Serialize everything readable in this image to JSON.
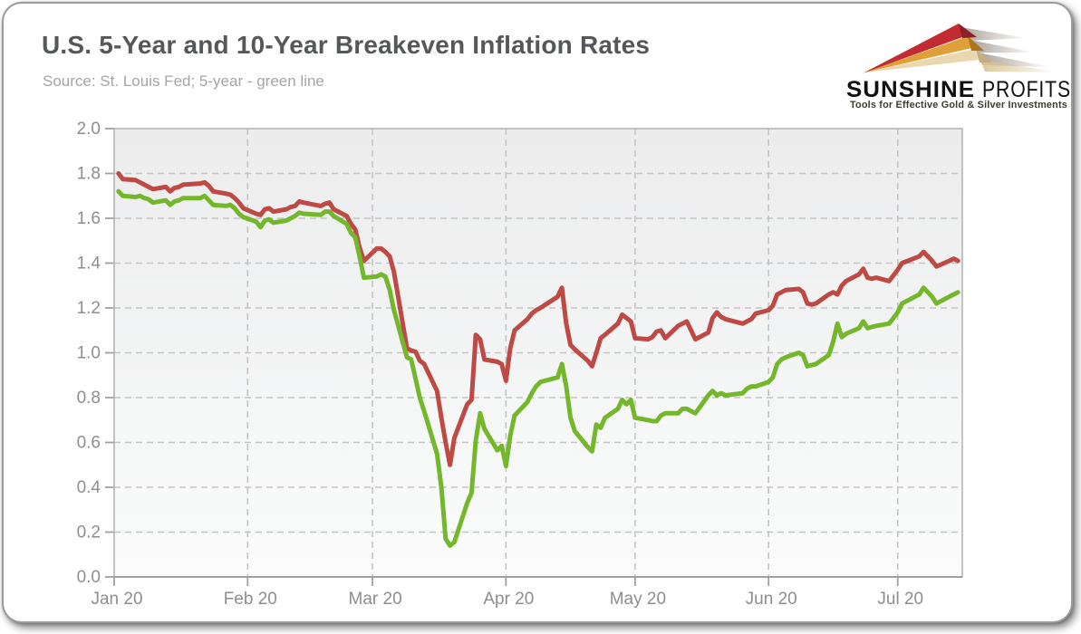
{
  "page": {
    "title": "U.S. 5-Year and 10-Year Breakeven Inflation Rates",
    "source_note": "Source: St. Louis Fed; 5-year - green line"
  },
  "logo": {
    "brand_bold": "SUNSHINE",
    "brand_regular": "PROFITS",
    "tagline": "Tools for Effective Gold & Silver Investments",
    "colors": {
      "ray_red": "#c22b31",
      "ray_red_tip": "#8e1f24",
      "ray_gold": "#dfa038",
      "ray_gold_tip": "#ad741c",
      "ray_cream": "#e9d7b0",
      "ray_cream_tip": "#c6ac80",
      "brand_text": "#111111",
      "tagline_text": "#3e3c2f"
    }
  },
  "chart_data": {
    "type": "line",
    "title": "U.S. 5-Year and 10-Year Breakeven Inflation Rates",
    "subtitle": "Source: St. Louis Fed; 5-year - green line",
    "grid": true,
    "legend": false,
    "plot_colors": {
      "background_top": "#ececed",
      "background_bottom": "#fbfbfb",
      "gridline": "#c4c4c4",
      "border": "#b5b5b5",
      "axis": "#a0a0a0",
      "tick_label": "#8e8e8e"
    },
    "x_axis": {
      "start": "2020-01-01",
      "end": "2020-07-16",
      "ticks": [
        {
          "label": "Jan 20",
          "date": "2020-01-01"
        },
        {
          "label": "Feb 20",
          "date": "2020-02-01"
        },
        {
          "label": "Mar 20",
          "date": "2020-03-01"
        },
        {
          "label": "Apr 20",
          "date": "2020-04-01"
        },
        {
          "label": "May 20",
          "date": "2020-05-01"
        },
        {
          "label": "Jun 20",
          "date": "2020-06-01"
        },
        {
          "label": "Jul 20",
          "date": "2020-07-01"
        }
      ]
    },
    "y_axis": {
      "min": 0.0,
      "max": 2.0,
      "step": 0.2,
      "labels": [
        "2.0",
        "1.8",
        "1.6",
        "1.4",
        "1.2",
        "1.0",
        "0.8",
        "0.6",
        "0.4",
        "0.2",
        "0.0"
      ]
    },
    "dates": [
      "2020-01-02",
      "2020-01-03",
      "2020-01-06",
      "2020-01-07",
      "2020-01-08",
      "2020-01-09",
      "2020-01-10",
      "2020-01-13",
      "2020-01-14",
      "2020-01-15",
      "2020-01-16",
      "2020-01-17",
      "2020-01-21",
      "2020-01-22",
      "2020-01-23",
      "2020-01-24",
      "2020-01-27",
      "2020-01-28",
      "2020-01-29",
      "2020-01-30",
      "2020-01-31",
      "2020-02-03",
      "2020-02-04",
      "2020-02-05",
      "2020-02-06",
      "2020-02-07",
      "2020-02-10",
      "2020-02-11",
      "2020-02-12",
      "2020-02-13",
      "2020-02-14",
      "2020-02-18",
      "2020-02-19",
      "2020-02-20",
      "2020-02-21",
      "2020-02-24",
      "2020-02-25",
      "2020-02-26",
      "2020-02-27",
      "2020-02-28",
      "2020-03-02",
      "2020-03-03",
      "2020-03-04",
      "2020-03-05",
      "2020-03-06",
      "2020-03-09",
      "2020-03-10",
      "2020-03-11",
      "2020-03-12",
      "2020-03-13",
      "2020-03-16",
      "2020-03-17",
      "2020-03-18",
      "2020-03-19",
      "2020-03-20",
      "2020-03-23",
      "2020-03-24",
      "2020-03-25",
      "2020-03-26",
      "2020-03-27",
      "2020-03-30",
      "2020-03-31",
      "2020-04-01",
      "2020-04-02",
      "2020-04-03",
      "2020-04-06",
      "2020-04-07",
      "2020-04-08",
      "2020-04-09",
      "2020-04-13",
      "2020-04-14",
      "2020-04-15",
      "2020-04-16",
      "2020-04-17",
      "2020-04-20",
      "2020-04-21",
      "2020-04-22",
      "2020-04-23",
      "2020-04-24",
      "2020-04-27",
      "2020-04-28",
      "2020-04-29",
      "2020-04-30",
      "2020-05-01",
      "2020-05-04",
      "2020-05-05",
      "2020-05-06",
      "2020-05-07",
      "2020-05-08",
      "2020-05-11",
      "2020-05-12",
      "2020-05-13",
      "2020-05-14",
      "2020-05-15",
      "2020-05-18",
      "2020-05-19",
      "2020-05-20",
      "2020-05-21",
      "2020-05-22",
      "2020-05-26",
      "2020-05-27",
      "2020-05-28",
      "2020-05-29",
      "2020-06-01",
      "2020-06-02",
      "2020-06-03",
      "2020-06-04",
      "2020-06-05",
      "2020-06-08",
      "2020-06-09",
      "2020-06-10",
      "2020-06-11",
      "2020-06-12",
      "2020-06-15",
      "2020-06-16",
      "2020-06-17",
      "2020-06-18",
      "2020-06-19",
      "2020-06-22",
      "2020-06-23",
      "2020-06-24",
      "2020-06-25",
      "2020-06-26",
      "2020-06-29",
      "2020-06-30",
      "2020-07-01",
      "2020-07-02",
      "2020-07-06",
      "2020-07-07",
      "2020-07-08",
      "2020-07-09",
      "2020-07-10",
      "2020-07-13",
      "2020-07-14",
      "2020-07-15"
    ],
    "series": [
      {
        "name": "10-Year Breakeven Inflation Rate",
        "color": "#bd4a45",
        "values": [
          1.8,
          1.775,
          1.77,
          1.76,
          1.75,
          1.74,
          1.73,
          1.74,
          1.72,
          1.735,
          1.74,
          1.75,
          1.755,
          1.76,
          1.745,
          1.72,
          1.71,
          1.705,
          1.69,
          1.67,
          1.645,
          1.62,
          1.615,
          1.64,
          1.645,
          1.63,
          1.64,
          1.65,
          1.655,
          1.675,
          1.67,
          1.655,
          1.665,
          1.67,
          1.64,
          1.61,
          1.575,
          1.55,
          1.47,
          1.41,
          1.465,
          1.465,
          1.45,
          1.43,
          1.36,
          1.02,
          1.01,
          1.005,
          0.965,
          0.95,
          0.83,
          0.71,
          0.6,
          0.5,
          0.62,
          0.77,
          0.79,
          1.08,
          1.06,
          0.97,
          0.96,
          0.95,
          0.875,
          1.02,
          1.1,
          1.15,
          1.175,
          1.19,
          1.2,
          1.25,
          1.29,
          1.13,
          1.035,
          1.015,
          0.965,
          0.94,
          1.0,
          1.065,
          1.08,
          1.13,
          1.17,
          1.155,
          1.14,
          1.065,
          1.06,
          1.07,
          1.095,
          1.1,
          1.065,
          1.12,
          1.13,
          1.14,
          1.1,
          1.06,
          1.09,
          1.155,
          1.18,
          1.16,
          1.15,
          1.13,
          1.14,
          1.15,
          1.175,
          1.19,
          1.21,
          1.26,
          1.27,
          1.28,
          1.285,
          1.27,
          1.22,
          1.215,
          1.22,
          1.26,
          1.27,
          1.26,
          1.3,
          1.32,
          1.35,
          1.375,
          1.335,
          1.33,
          1.335,
          1.32,
          1.345,
          1.37,
          1.4,
          1.43,
          1.45,
          1.43,
          1.41,
          1.385,
          1.41,
          1.42,
          1.41
        ]
      },
      {
        "name": "5-Year Breakeven Inflation Rate (green line)",
        "color": "#74b72c",
        "values": [
          1.72,
          1.7,
          1.695,
          1.7,
          1.69,
          1.685,
          1.67,
          1.68,
          1.66,
          1.675,
          1.68,
          1.69,
          1.69,
          1.7,
          1.68,
          1.66,
          1.655,
          1.66,
          1.645,
          1.62,
          1.605,
          1.585,
          1.56,
          1.59,
          1.595,
          1.58,
          1.59,
          1.6,
          1.61,
          1.625,
          1.62,
          1.615,
          1.63,
          1.63,
          1.61,
          1.575,
          1.535,
          1.515,
          1.43,
          1.335,
          1.34,
          1.35,
          1.34,
          1.28,
          1.19,
          0.98,
          0.97,
          0.885,
          0.8,
          0.74,
          0.55,
          0.4,
          0.17,
          0.14,
          0.155,
          0.33,
          0.375,
          0.61,
          0.73,
          0.66,
          0.565,
          0.585,
          0.495,
          0.63,
          0.72,
          0.78,
          0.82,
          0.85,
          0.87,
          0.89,
          0.95,
          0.85,
          0.71,
          0.65,
          0.58,
          0.56,
          0.68,
          0.665,
          0.71,
          0.75,
          0.79,
          0.77,
          0.79,
          0.71,
          0.7,
          0.695,
          0.695,
          0.72,
          0.73,
          0.73,
          0.75,
          0.75,
          0.74,
          0.73,
          0.81,
          0.83,
          0.81,
          0.82,
          0.81,
          0.82,
          0.84,
          0.85,
          0.85,
          0.87,
          0.89,
          0.95,
          0.97,
          0.98,
          1.0,
          0.99,
          0.94,
          0.945,
          0.95,
          0.99,
          1.05,
          1.13,
          1.07,
          1.085,
          1.11,
          1.14,
          1.11,
          1.115,
          1.12,
          1.13,
          1.155,
          1.18,
          1.22,
          1.26,
          1.29,
          1.27,
          1.25,
          1.22,
          1.25,
          1.26,
          1.27
        ]
      }
    ]
  }
}
